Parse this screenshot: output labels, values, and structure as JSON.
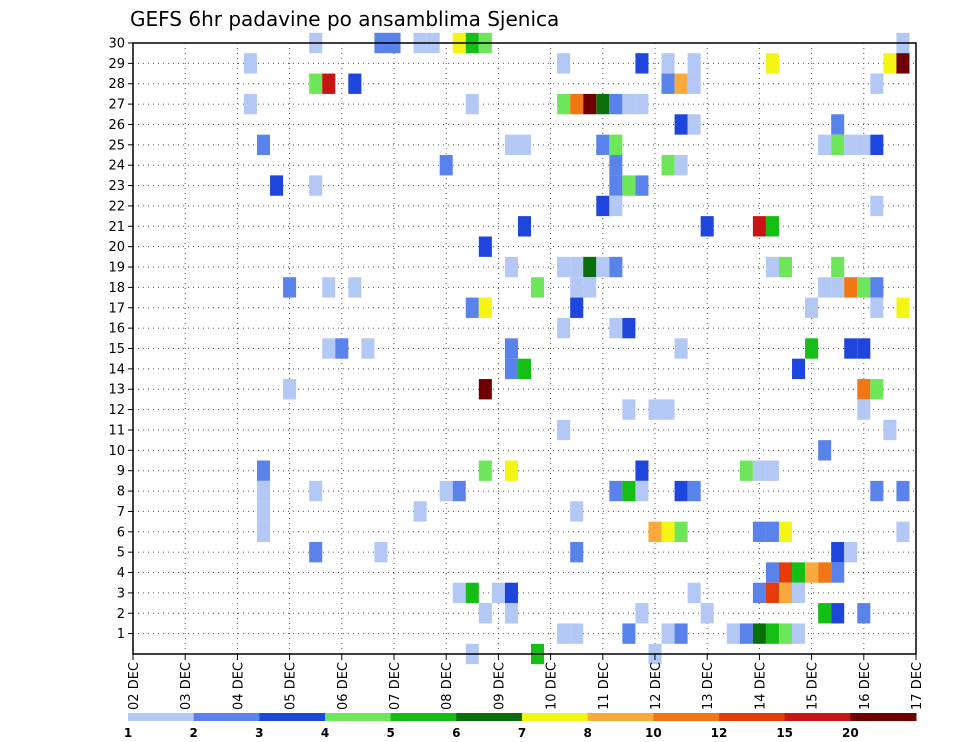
{
  "chart_data": {
    "type": "heatmap",
    "title": "GEFS 6hr padavine po ansamblima Sjenica",
    "x_tick_labels": [
      "02 DEC",
      "03 DEC",
      "04 DEC",
      "05 DEC",
      "06 DEC",
      "07 DEC",
      "08 DEC",
      "09 DEC",
      "10 DEC",
      "11 DEC",
      "12 DEC",
      "13 DEC",
      "14 DEC",
      "15 DEC",
      "16 DEC",
      "17 DEC"
    ],
    "y_tick_labels": [
      "1",
      "2",
      "3",
      "4",
      "5",
      "6",
      "7",
      "8",
      "9",
      "10",
      "11",
      "12",
      "13",
      "14",
      "15",
      "16",
      "17",
      "18",
      "19",
      "20",
      "21",
      "22",
      "23",
      "24",
      "25",
      "26",
      "27",
      "28",
      "29",
      "30"
    ],
    "x_unit": "6-hour step index from 02 DEC 00Z (4 per day)",
    "x_range": [
      0,
      60
    ],
    "y_range": [
      0,
      30
    ],
    "grid": "dotted",
    "colorbar": {
      "labels": [
        "1",
        "2",
        "3",
        "4",
        "5",
        "6",
        "7",
        "8",
        "10",
        "12",
        "15",
        "20"
      ],
      "bins": [
        {
          "level": 1,
          "color": "#b4c8f5"
        },
        {
          "level": 2,
          "color": "#5a82eb"
        },
        {
          "level": 3,
          "color": "#1e46dc"
        },
        {
          "level": 4,
          "color": "#6ee65a"
        },
        {
          "level": 5,
          "color": "#14be14"
        },
        {
          "level": 6,
          "color": "#0a6e0a"
        },
        {
          "level": 7,
          "color": "#f5f514"
        },
        {
          "level": 8,
          "color": "#faaa3c"
        },
        {
          "level": 10,
          "color": "#f07814"
        },
        {
          "level": 12,
          "color": "#e63c0a"
        },
        {
          "level": 15,
          "color": "#c81414"
        },
        {
          "level": 20,
          "color": "#6e0000"
        }
      ]
    },
    "cells": [
      [
        30,
        14,
        1
      ],
      [
        30,
        19,
        2
      ],
      [
        30,
        20,
        2
      ],
      [
        30,
        22,
        1
      ],
      [
        30,
        23,
        1
      ],
      [
        30,
        25,
        7
      ],
      [
        30,
        26,
        5
      ],
      [
        30,
        27,
        4
      ],
      [
        30,
        59,
        1
      ],
      [
        29,
        9,
        1
      ],
      [
        29,
        33,
        1
      ],
      [
        29,
        39,
        3
      ],
      [
        29,
        41,
        1
      ],
      [
        29,
        43,
        1
      ],
      [
        29,
        49,
        7
      ],
      [
        29,
        58,
        7
      ],
      [
        29,
        59,
        20
      ],
      [
        28,
        14,
        4
      ],
      [
        28,
        15,
        15
      ],
      [
        28,
        17,
        3
      ],
      [
        28,
        41,
        2
      ],
      [
        28,
        42,
        8
      ],
      [
        28,
        43,
        1
      ],
      [
        28,
        57,
        1
      ],
      [
        27,
        9,
        1
      ],
      [
        27,
        26,
        1
      ],
      [
        27,
        33,
        4
      ],
      [
        27,
        34,
        10
      ],
      [
        27,
        35,
        20
      ],
      [
        27,
        36,
        6
      ],
      [
        27,
        37,
        2
      ],
      [
        27,
        38,
        1
      ],
      [
        27,
        39,
        1
      ],
      [
        26,
        42,
        3
      ],
      [
        26,
        43,
        1
      ],
      [
        26,
        54,
        2
      ],
      [
        25,
        10,
        2
      ],
      [
        25,
        29,
        1
      ],
      [
        25,
        30,
        1
      ],
      [
        25,
        36,
        2
      ],
      [
        25,
        37,
        4
      ],
      [
        25,
        53,
        1
      ],
      [
        25,
        54,
        4
      ],
      [
        25,
        55,
        1
      ],
      [
        25,
        56,
        1
      ],
      [
        25,
        57,
        3
      ],
      [
        24,
        24,
        2
      ],
      [
        24,
        37,
        2
      ],
      [
        24,
        41,
        4
      ],
      [
        24,
        42,
        1
      ],
      [
        23,
        11,
        3
      ],
      [
        23,
        14,
        1
      ],
      [
        23,
        37,
        2
      ],
      [
        23,
        38,
        4
      ],
      [
        23,
        39,
        2
      ],
      [
        22,
        36,
        3
      ],
      [
        22,
        37,
        1
      ],
      [
        22,
        57,
        1
      ],
      [
        21,
        30,
        3
      ],
      [
        21,
        44,
        3
      ],
      [
        21,
        48,
        15
      ],
      [
        21,
        49,
        5
      ],
      [
        20,
        27,
        3
      ],
      [
        19,
        29,
        1
      ],
      [
        19,
        33,
        1
      ],
      [
        19,
        34,
        1
      ],
      [
        19,
        35,
        6
      ],
      [
        19,
        36,
        1
      ],
      [
        19,
        37,
        2
      ],
      [
        19,
        49,
        1
      ],
      [
        19,
        50,
        4
      ],
      [
        19,
        54,
        4
      ],
      [
        18,
        12,
        2
      ],
      [
        18,
        15,
        1
      ],
      [
        18,
        17,
        1
      ],
      [
        18,
        31,
        4
      ],
      [
        18,
        34,
        1
      ],
      [
        18,
        35,
        1
      ],
      [
        18,
        53,
        1
      ],
      [
        18,
        54,
        1
      ],
      [
        18,
        55,
        10
      ],
      [
        18,
        56,
        4
      ],
      [
        18,
        57,
        2
      ],
      [
        17,
        26,
        2
      ],
      [
        17,
        27,
        7
      ],
      [
        17,
        34,
        3
      ],
      [
        17,
        52,
        1
      ],
      [
        17,
        57,
        1
      ],
      [
        17,
        59,
        7
      ],
      [
        16,
        33,
        1
      ],
      [
        16,
        37,
        1
      ],
      [
        16,
        38,
        3
      ],
      [
        15,
        15,
        1
      ],
      [
        15,
        16,
        2
      ],
      [
        15,
        18,
        1
      ],
      [
        15,
        29,
        2
      ],
      [
        15,
        42,
        1
      ],
      [
        15,
        52,
        5
      ],
      [
        15,
        55,
        3
      ],
      [
        15,
        56,
        3
      ],
      [
        14,
        29,
        2
      ],
      [
        14,
        30,
        5
      ],
      [
        14,
        51,
        3
      ],
      [
        13,
        12,
        1
      ],
      [
        13,
        27,
        20
      ],
      [
        13,
        56,
        10
      ],
      [
        13,
        57,
        4
      ],
      [
        12,
        38,
        1
      ],
      [
        12,
        40,
        1
      ],
      [
        12,
        41,
        1
      ],
      [
        12,
        56,
        1
      ],
      [
        11,
        33,
        1
      ],
      [
        11,
        58,
        1
      ],
      [
        10,
        53,
        2
      ],
      [
        9,
        10,
        2
      ],
      [
        9,
        27,
        4
      ],
      [
        9,
        29,
        7
      ],
      [
        9,
        39,
        3
      ],
      [
        9,
        47,
        4
      ],
      [
        9,
        48,
        1
      ],
      [
        9,
        49,
        1
      ],
      [
        8,
        10,
        1
      ],
      [
        8,
        14,
        1
      ],
      [
        8,
        24,
        1
      ],
      [
        8,
        25,
        2
      ],
      [
        8,
        37,
        2
      ],
      [
        8,
        38,
        5
      ],
      [
        8,
        39,
        1
      ],
      [
        8,
        42,
        3
      ],
      [
        8,
        43,
        2
      ],
      [
        8,
        57,
        2
      ],
      [
        8,
        59,
        2
      ],
      [
        7,
        10,
        1
      ],
      [
        7,
        22,
        1
      ],
      [
        7,
        34,
        1
      ],
      [
        6,
        10,
        1
      ],
      [
        6,
        40,
        8
      ],
      [
        6,
        41,
        7
      ],
      [
        6,
        42,
        4
      ],
      [
        6,
        48,
        2
      ],
      [
        6,
        49,
        2
      ],
      [
        6,
        50,
        7
      ],
      [
        6,
        59,
        1
      ],
      [
        5,
        14,
        2
      ],
      [
        5,
        19,
        1
      ],
      [
        5,
        34,
        2
      ],
      [
        5,
        54,
        3
      ],
      [
        5,
        55,
        1
      ],
      [
        4,
        49,
        2
      ],
      [
        4,
        50,
        12
      ],
      [
        4,
        51,
        5
      ],
      [
        4,
        52,
        8
      ],
      [
        4,
        53,
        10
      ],
      [
        4,
        54,
        2
      ],
      [
        3,
        25,
        1
      ],
      [
        3,
        26,
        5
      ],
      [
        3,
        28,
        1
      ],
      [
        3,
        29,
        3
      ],
      [
        3,
        43,
        1
      ],
      [
        3,
        48,
        2
      ],
      [
        3,
        49,
        12
      ],
      [
        3,
        50,
        8
      ],
      [
        3,
        51,
        1
      ],
      [
        2,
        27,
        1
      ],
      [
        2,
        29,
        1
      ],
      [
        2,
        39,
        1
      ],
      [
        2,
        44,
        1
      ],
      [
        2,
        53,
        5
      ],
      [
        2,
        54,
        3
      ],
      [
        2,
        56,
        2
      ],
      [
        1,
        33,
        1
      ],
      [
        1,
        34,
        1
      ],
      [
        1,
        38,
        2
      ],
      [
        1,
        41,
        1
      ],
      [
        1,
        42,
        2
      ],
      [
        1,
        46,
        1
      ],
      [
        1,
        47,
        2
      ],
      [
        1,
        48,
        6
      ],
      [
        1,
        49,
        5
      ],
      [
        1,
        50,
        4
      ],
      [
        1,
        51,
        1
      ],
      [
        0,
        26,
        1
      ],
      [
        0,
        31,
        5
      ],
      [
        0,
        40,
        1
      ]
    ]
  }
}
